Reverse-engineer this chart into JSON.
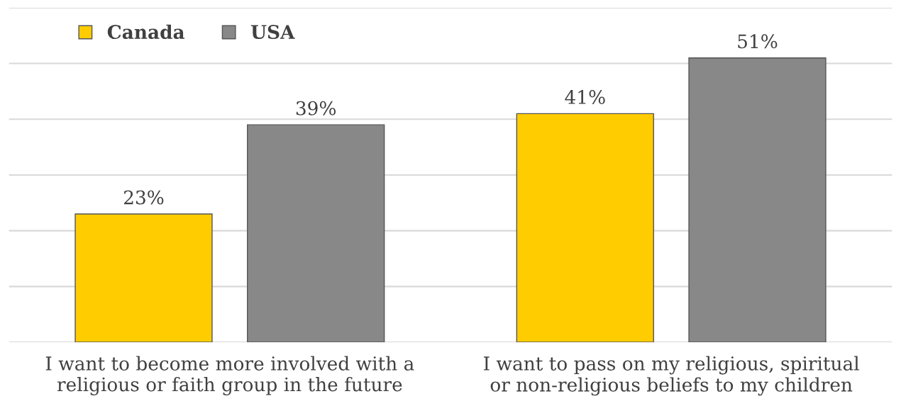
{
  "chart_data": {
    "type": "bar",
    "categories": [
      "I want to become more involved with a religious or faith group in the future",
      "I want to pass on my religious, spiritual or non-religious beliefs to my children"
    ],
    "series": [
      {
        "name": "Canada",
        "color": "#ffcc00",
        "values": [
          23,
          41
        ],
        "value_labels": [
          "23%",
          "41%"
        ]
      },
      {
        "name": "USA",
        "color": "#888888",
        "values": [
          39,
          51
        ],
        "value_labels": [
          "39%",
          "51%"
        ]
      }
    ],
    "ylim": [
      0,
      60
    ],
    "yticks": [
      {
        "value": 0,
        "label": null
      },
      {
        "value": 10,
        "label": null
      },
      {
        "value": 20,
        "label": null
      },
      {
        "value": 30,
        "label": null
      },
      {
        "value": 40,
        "label": null
      },
      {
        "value": 50,
        "label": null
      },
      {
        "value": 60,
        "label": null
      }
    ],
    "tick_labels": "x",
    "grid": "y",
    "legend": "top left"
  }
}
